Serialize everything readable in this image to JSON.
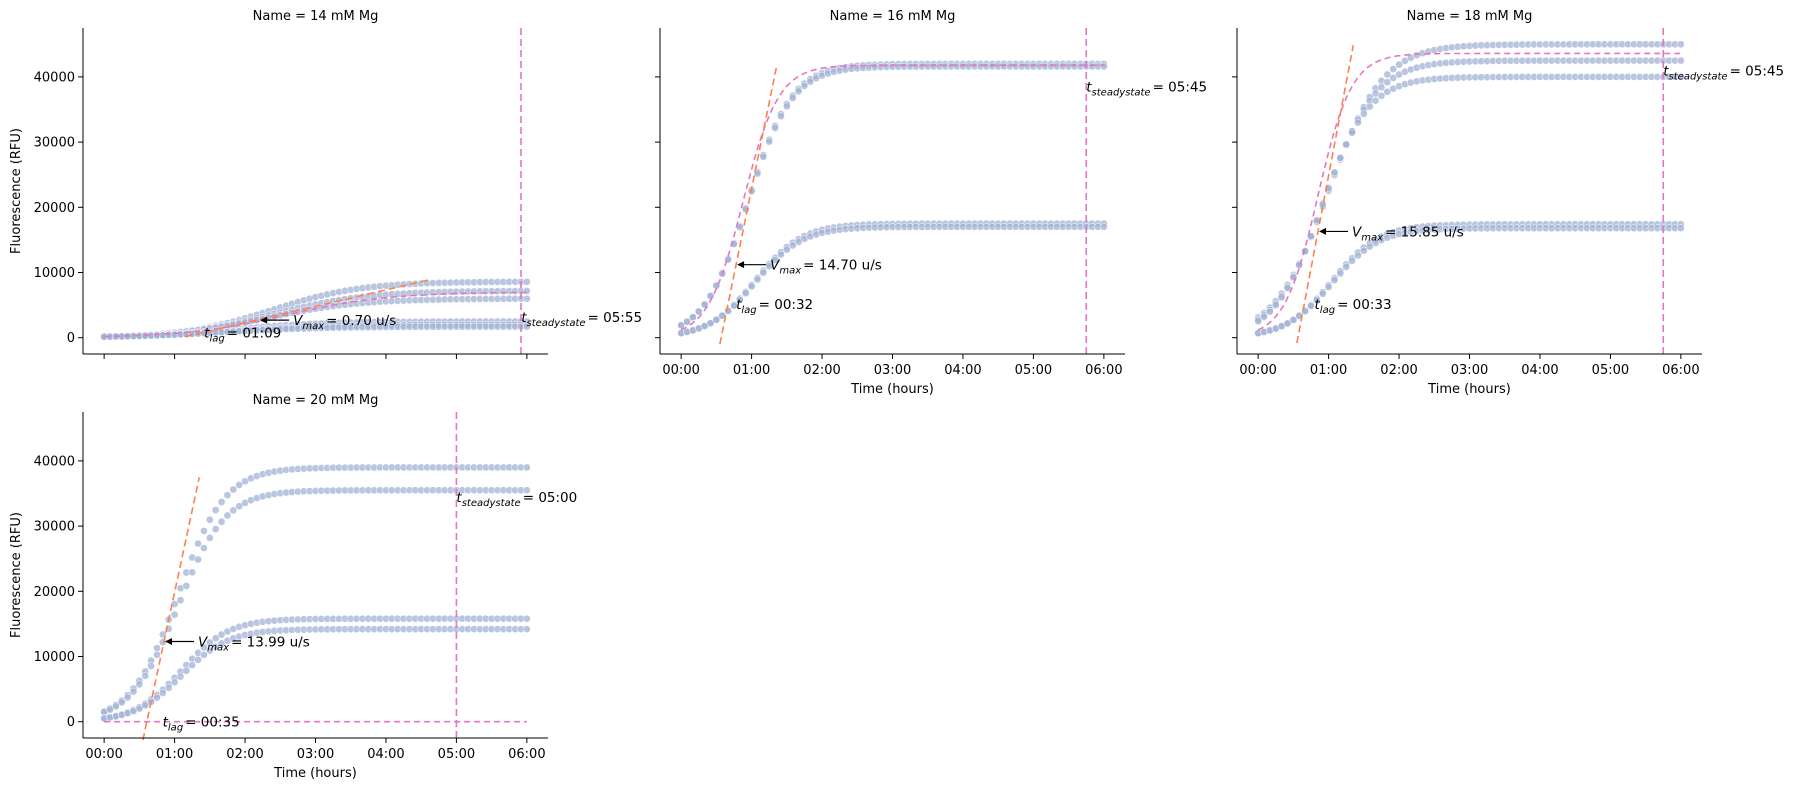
{
  "figure": {
    "shared_y_ticks": [
      0,
      10000,
      20000,
      30000,
      40000
    ],
    "x_ticks": [
      "00:00",
      "01:00",
      "02:00",
      "03:00",
      "04:00",
      "05:00",
      "06:00"
    ],
    "colors": {
      "points": "#a3b3d6",
      "tangent": "#ff7f4d",
      "fit": "#e377c2",
      "steady": "#e377c2",
      "axis": "#000000"
    }
  },
  "chart_data": [
    {
      "type": "scatter",
      "title": "Name = 14 mM Mg",
      "xlabel": "",
      "ylabel": "Fluorescence (RFU)",
      "xlim_hours": [
        -0.3,
        6.3
      ],
      "ylim": [
        -2500,
        47500
      ],
      "series": [
        {
          "plateau": 8600,
          "midpoint_h": 2.4,
          "rate": 1.6
        },
        {
          "plateau": 7200,
          "midpoint_h": 2.4,
          "rate": 1.5
        },
        {
          "plateau": 6000,
          "midpoint_h": 2.3,
          "rate": 1.5
        },
        {
          "plateau": 2500,
          "midpoint_h": 1.8,
          "rate": 1.5
        },
        {
          "plateau": 2000,
          "midpoint_h": 1.8,
          "rate": 1.4
        },
        {
          "plateau": 1700,
          "midpoint_h": 1.7,
          "rate": 1.4
        }
      ],
      "fit_curve": {
        "plateau": 7000,
        "midpoint_h": 2.6,
        "rate": 1.4
      },
      "tangent": {
        "x0_h": 1.15,
        "x1_h": 4.6,
        "y_at_tangent_point": 2800,
        "slope_per_h": 2520
      },
      "steadystate_h": 5.9167,
      "annotations": {
        "vmax_prefix": "V",
        "vmax_sub": "max",
        "vmax_text": "=  0.70 u/s",
        "vmax_point": [
          2.2,
          2700
        ],
        "lag_prefix": "t",
        "lag_sub": "lag",
        "lag_text": "=  01:09",
        "lag_anchor": [
          1.42,
          800
        ],
        "steady_prefix": "t",
        "steady_sub": "steadystate",
        "steady_text": "=  05:55",
        "steady_anchor": [
          5.92,
          3200
        ]
      },
      "show_xticklabels": false
    },
    {
      "type": "scatter",
      "title": "Name = 16 mM Mg",
      "xlabel": "Time (hours)",
      "ylabel": "",
      "xlim_hours": [
        -0.3,
        6.3
      ],
      "ylim": [
        -2500,
        47500
      ],
      "series": [
        {
          "plateau": 42000,
          "midpoint_h": 0.95,
          "rate": 3.2
        },
        {
          "plateau": 41600,
          "midpoint_h": 0.95,
          "rate": 3.2
        },
        {
          "plateau": 17500,
          "midpoint_h": 1.05,
          "rate": 3.0
        },
        {
          "plateau": 17000,
          "midpoint_h": 1.05,
          "rate": 3.0
        }
      ],
      "fit_curve": {
        "plateau": 41800,
        "midpoint_h": 0.88,
        "rate": 4.0
      },
      "tangent": {
        "x0_h": 0.55,
        "x1_h": 1.35,
        "y_at_tangent_point": 11200,
        "slope_per_h": 52920
      },
      "steadystate_h": 5.75,
      "annotations": {
        "vmax_prefix": "V",
        "vmax_sub": "max",
        "vmax_text": "=  14.70 u/s",
        "vmax_point": [
          0.78,
          11200
        ],
        "lag_prefix": "t",
        "lag_sub": "lag",
        "lag_text": "=  00:32",
        "lag_anchor": [
          0.78,
          5200
        ],
        "steady_prefix": "t",
        "steady_sub": "steadystate",
        "steady_text": "=  05:45",
        "steady_anchor": [
          5.75,
          38500
        ]
      },
      "show_xticklabels": true
    },
    {
      "type": "scatter",
      "title": "Name = 18 mM Mg",
      "xlabel": "Time (hours)",
      "ylabel": "",
      "xlim_hours": [
        -0.3,
        6.3
      ],
      "ylim": [
        -2500,
        47500
      ],
      "series": [
        {
          "plateau": 45000,
          "midpoint_h": 1.0,
          "rate": 2.6
        },
        {
          "plateau": 42500,
          "midpoint_h": 0.95,
          "rate": 2.8
        },
        {
          "plateau": 40000,
          "midpoint_h": 0.9,
          "rate": 3.0
        },
        {
          "plateau": 17400,
          "midpoint_h": 1.05,
          "rate": 3.0
        },
        {
          "plateau": 16800,
          "midpoint_h": 1.05,
          "rate": 3.0
        }
      ],
      "fit_curve": {
        "plateau": 43600,
        "midpoint_h": 0.85,
        "rate": 4.2
      },
      "tangent": {
        "x0_h": 0.55,
        "x1_h": 1.35,
        "y_at_tangent_point": 16300,
        "slope_per_h": 57060
      },
      "steadystate_h": 5.75,
      "annotations": {
        "vmax_prefix": "V",
        "vmax_sub": "max",
        "vmax_text": "=  15.85 u/s",
        "vmax_point": [
          0.85,
          16300
        ],
        "lag_prefix": "t",
        "lag_sub": "lag",
        "lag_text": "=  00:33",
        "lag_anchor": [
          0.8,
          5200
        ],
        "steady_prefix": "t",
        "steady_sub": "steadystate",
        "steady_text": "=  05:45",
        "steady_anchor": [
          5.75,
          41000
        ]
      },
      "show_xticklabels": true
    },
    {
      "type": "scatter",
      "title": "Name = 20 mM Mg",
      "xlabel": "Time (hours)",
      "ylabel": "Fluorescence (RFU)",
      "xlim_hours": [
        -0.3,
        6.3
      ],
      "ylim": [
        -2500,
        47500
      ],
      "series": [
        {
          "plateau": 39000,
          "midpoint_h": 1.05,
          "rate": 3.0
        },
        {
          "plateau": 35500,
          "midpoint_h": 1.05,
          "rate": 3.0
        },
        {
          "plateau": 15800,
          "midpoint_h": 1.1,
          "rate": 3.0
        },
        {
          "plateau": 14200,
          "midpoint_h": 1.1,
          "rate": 3.0
        }
      ],
      "fit_curve": {
        "plateau": 0,
        "midpoint_h": 1.0,
        "rate": 3.0
      },
      "tangent": {
        "x0_h": 0.55,
        "x1_h": 1.35,
        "y_at_tangent_point": 12300,
        "slope_per_h": 50360
      },
      "steadystate_h": 5.0,
      "annotations": {
        "vmax_prefix": "V",
        "vmax_sub": "max",
        "vmax_text": "=  13.99 u/s",
        "vmax_point": [
          0.85,
          12300
        ],
        "lag_prefix": "t",
        "lag_sub": "lag",
        "lag_text": "=  00:35",
        "lag_anchor": [
          0.83,
          0
        ],
        "steady_prefix": "t",
        "steady_sub": "steadystate",
        "steady_text": "=  05:00",
        "steady_anchor": [
          5.0,
          34500
        ]
      },
      "show_xticklabels": true
    }
  ]
}
